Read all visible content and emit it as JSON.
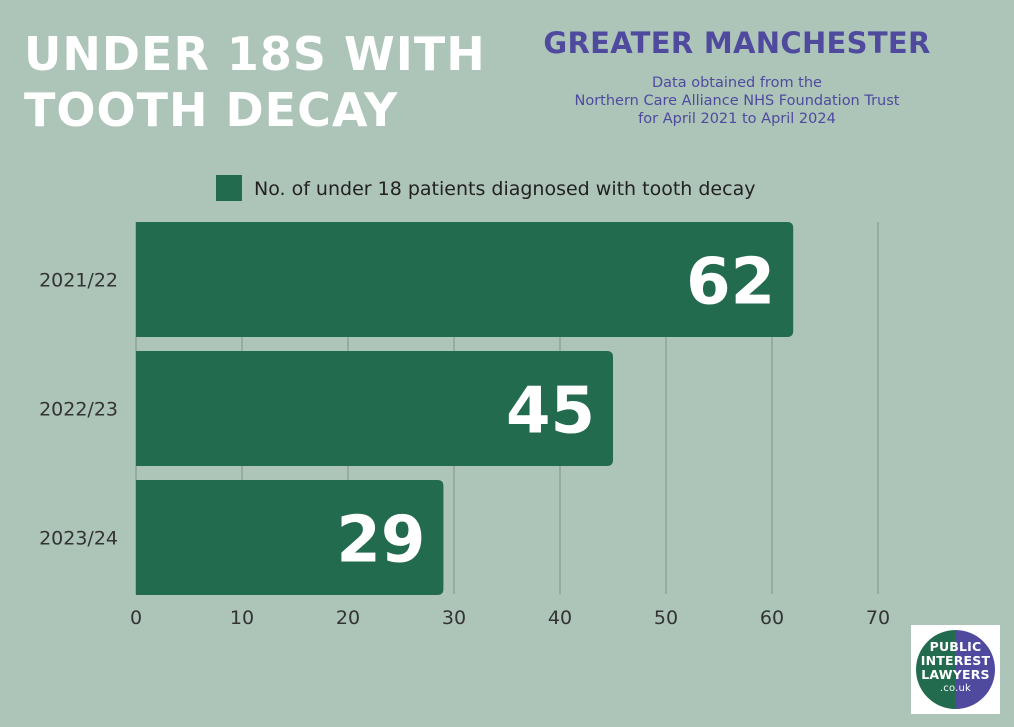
{
  "header": {
    "title_line1": "UNDER 18S WITH",
    "title_line2": "TOOTH DECAY",
    "region": "GREATER MANCHESTER",
    "source_line1": "Data obtained from the",
    "source_line2": "Northern Care Alliance NHS Foundation Trust",
    "source_line3": "for April 2021 to April 2024"
  },
  "chart_data": {
    "type": "bar",
    "orientation": "horizontal",
    "categories": [
      "2021/22",
      "2022/23",
      "2023/24"
    ],
    "series": [
      {
        "name": "No. of under 18 patients diagnosed with tooth decay",
        "values": [
          62,
          45,
          29
        ],
        "color": "#236b4e"
      }
    ],
    "xlim": [
      0,
      70
    ],
    "xticks": [
      0,
      10,
      20,
      30,
      40,
      50,
      60,
      70
    ],
    "grid": "vertical",
    "legend_position": "top",
    "data_labels": true
  },
  "logo": {
    "line1": "PUBLIC",
    "line2": "INTEREST",
    "line3": "LAWYERS",
    "line4": ".co.uk"
  },
  "colors": {
    "background": "#adc4b9",
    "bar": "#236b4e",
    "accent": "#4f4a9e",
    "grid": "#8c9a93",
    "title": "#ffffff"
  }
}
